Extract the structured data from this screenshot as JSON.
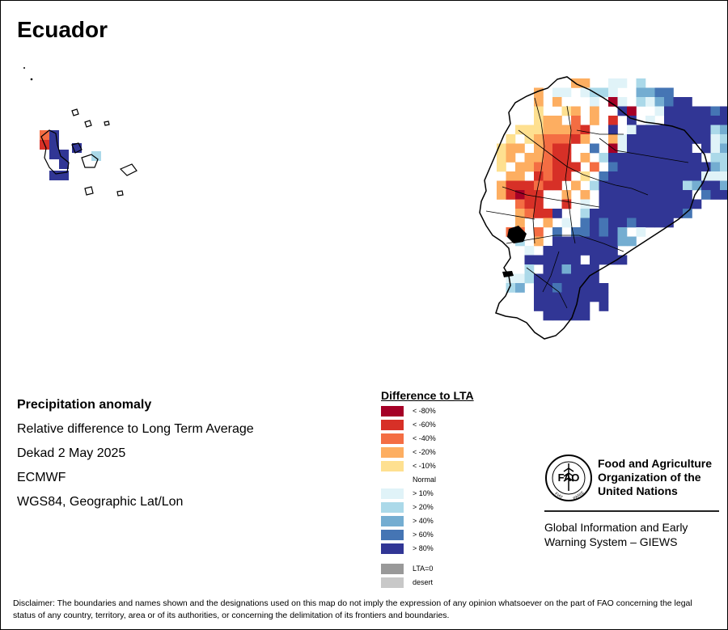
{
  "map": {
    "title": "Ecuador"
  },
  "info": {
    "heading": "Precipitation anomaly",
    "line1": "Relative difference to Long Term Average",
    "line2": "Dekad 2 May 2025",
    "line3": "ECMWF",
    "line4": "WGS84, Geographic Lat/Lon"
  },
  "legend": {
    "title": "Difference to LTA",
    "items": [
      {
        "label": "< -80%",
        "color": "#a50026"
      },
      {
        "label": "< -60%",
        "color": "#d73027"
      },
      {
        "label": "< -40%",
        "color": "#f46d43"
      },
      {
        "label": "< -20%",
        "color": "#fdae61"
      },
      {
        "label": "< -10%",
        "color": "#fee090"
      },
      {
        "label": "Normal",
        "color": "#ffffff"
      },
      {
        "label": "> 10%",
        "color": "#e0f3f8"
      },
      {
        "label": "> 20%",
        "color": "#abd9e9"
      },
      {
        "label": "> 40%",
        "color": "#74add1"
      },
      {
        "label": "> 60%",
        "color": "#4575b4"
      },
      {
        "label": "> 80%",
        "color": "#313695"
      }
    ],
    "extra": [
      {
        "label": "LTA=0",
        "color": "#999999"
      },
      {
        "label": "desert",
        "color": "#c8c8c8"
      }
    ]
  },
  "organization": {
    "name_line1": "Food and Agriculture",
    "name_line2": "Organization of the",
    "name_line3": "United Nations",
    "logo_text": "FAO",
    "logo_motto_left": "FIAT",
    "logo_motto_right": "PANIS",
    "system_line1": "Global Information and Early",
    "system_line2": "Warning System – GIEWS"
  },
  "disclaimer": "Disclaimer: The boundaries and names shown and the designations used on this map do not imply the expression of any opinion whatsoever on the part of FAO concerning the legal status of any country, territory, area or of its authorities, or concerning the delimitation of its frontiers and boundaries."
}
